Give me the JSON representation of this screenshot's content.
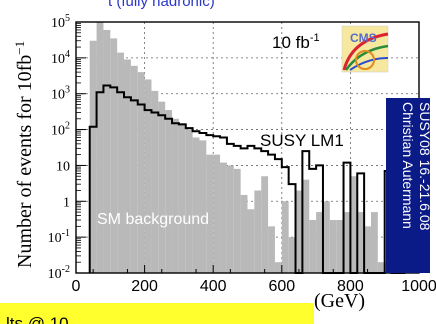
{
  "top_banner": "t (fully hadronic)",
  "bottom_banner": "lts @ 10",
  "side_credit": {
    "line1": "Christian Autermann",
    "line2": "SUSY08 16.-21.6.08"
  },
  "logo_text": "CMS",
  "colors": {
    "background_fill": "#b9b9b9",
    "signal_line": "#000000",
    "credit_box": "#0a1a86",
    "banner_yellow": "#ffff2e",
    "banner_top_text": "#2a36c8"
  },
  "chart_data": {
    "type": "histogram",
    "ylabel": "Number of events for 10fb",
    "ylabel_superscript": "−1",
    "xlabel": "(GeV)",
    "luminosity_label": "10 fb",
    "luminosity_superscript": "-1",
    "x_range": [
      0,
      1000
    ],
    "y_range": [
      0.01,
      100000
    ],
    "y_scale": "log",
    "grid": true,
    "x_tick_labels": [
      "0",
      "200",
      "400",
      "600",
      "800",
      "1000"
    ],
    "y_tick_labels": [
      {
        "base": "10",
        "exp": "-2"
      },
      {
        "base": "10",
        "exp": "-1"
      },
      {
        "base": "1",
        "exp": ""
      },
      {
        "base": "10",
        "exp": ""
      },
      {
        "base": "10",
        "exp": "2"
      },
      {
        "base": "10",
        "exp": "3"
      },
      {
        "base": "10",
        "exp": "4"
      },
      {
        "base": "10",
        "exp": "5"
      }
    ],
    "bin_width": 20,
    "bin_low_edges": [
      40,
      60,
      80,
      100,
      120,
      140,
      160,
      180,
      200,
      220,
      240,
      260,
      280,
      300,
      320,
      340,
      360,
      380,
      400,
      420,
      440,
      460,
      480,
      500,
      520,
      540,
      560,
      580,
      600,
      620,
      640,
      660,
      680,
      700,
      720,
      740,
      760,
      780,
      800,
      820,
      840,
      860,
      880,
      900,
      920,
      940
    ],
    "series": [
      {
        "name": "SM background",
        "style": "filled",
        "values": [
          30000,
          100000,
          60000,
          35000,
          14000,
          9000,
          6000,
          4000,
          2500,
          1200,
          600,
          350,
          200,
          150,
          100,
          60,
          50,
          20,
          20,
          12,
          10,
          8,
          1.5,
          0.6,
          2,
          5,
          0.2,
          0.02,
          1,
          0.1,
          2,
          4,
          0.3,
          0.5,
          1,
          0.3,
          0.3,
          0.5,
          5,
          0.5,
          0.2,
          0.5,
          0.02,
          0.02,
          0.02,
          0.02
        ]
      },
      {
        "name": "SUSY LM1",
        "style": "step",
        "values": [
          120,
          1100,
          1700,
          1500,
          1100,
          800,
          650,
          500,
          350,
          300,
          250,
          200,
          150,
          140,
          110,
          90,
          80,
          70,
          65,
          60,
          40,
          35,
          30,
          35,
          30,
          25,
          20,
          15,
          9,
          3,
          0.01,
          25,
          8,
          10,
          0.01,
          0.01,
          0.01,
          12,
          0.01,
          6,
          0.01,
          0.01,
          0.01,
          7,
          0.01,
          0.01
        ]
      }
    ]
  }
}
